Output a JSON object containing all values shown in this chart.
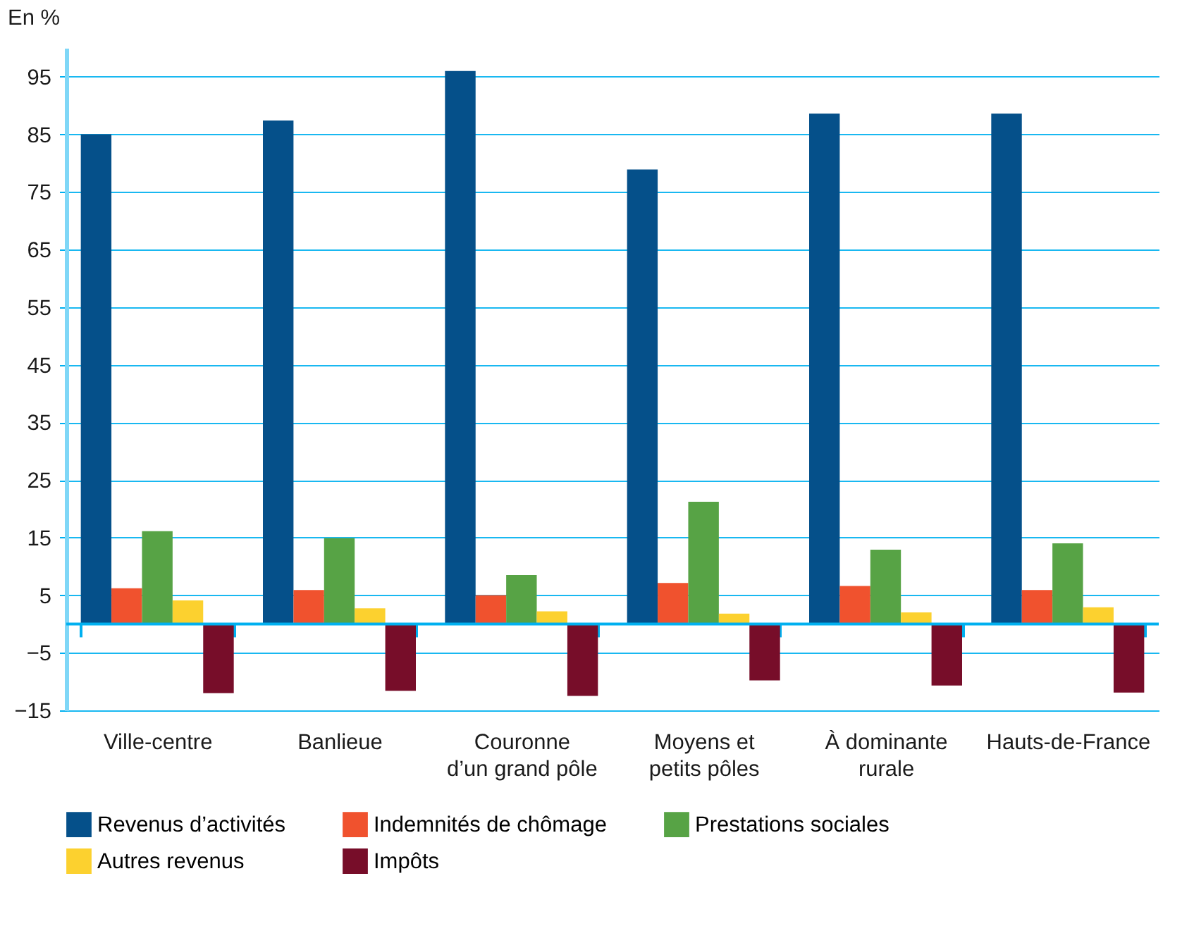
{
  "chart_data": {
    "type": "bar",
    "ylabel": "En %",
    "categories": [
      "Ville-centre",
      "Banlieue",
      "Couronne\nd’un grand pôle",
      "Moyens et\npetits pôles",
      "À dominante\nrurale",
      "Hauts-de-France"
    ],
    "series": [
      {
        "name": "Revenus d’activités",
        "color": "#05508a",
        "values": [
          85.0,
          87.4,
          96.0,
          78.9,
          88.6,
          88.6
        ]
      },
      {
        "name": "Indemnités de chômage",
        "color": "#f0522e",
        "values": [
          6.2,
          5.9,
          5.0,
          7.1,
          6.6,
          5.9
        ]
      },
      {
        "name": "Prestations sociales",
        "color": "#57a345",
        "values": [
          16.1,
          14.9,
          8.5,
          21.2,
          12.9,
          14.0
        ]
      },
      {
        "name": "Autres revenus",
        "color": "#fcd12f",
        "values": [
          4.1,
          2.7,
          2.2,
          1.8,
          2.0,
          2.9
        ]
      },
      {
        "name": "Impôts",
        "color": "#770d29",
        "values": [
          -12.0,
          -11.6,
          -12.5,
          -9.8,
          -10.7,
          -11.9
        ]
      }
    ],
    "ylim": [
      -15,
      100
    ],
    "yticks": [
      -15,
      -5,
      5,
      15,
      25,
      35,
      45,
      55,
      65,
      75,
      85,
      95
    ],
    "ref_lines": [
      {
        "axis": "y",
        "value": 0,
        "color": "#00b0f0"
      }
    ],
    "grid": "y",
    "legend": "bottom"
  }
}
